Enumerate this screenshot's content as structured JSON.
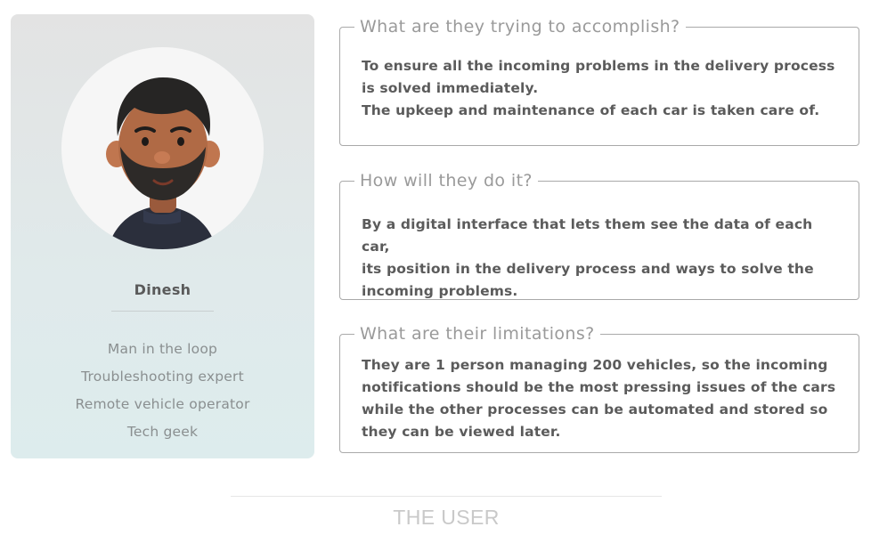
{
  "profile": {
    "name": "Dinesh",
    "avatar_icon": "man-avatar-icon",
    "roles": [
      "Man in the loop",
      "Troubleshooting expert",
      "Remote vehicle operator",
      "Tech geek"
    ]
  },
  "sections": [
    {
      "legend": "What are they trying to accomplish?",
      "lines": [
        "To ensure all the incoming problems in the delivery process",
        "is solved immediately.",
        "The upkeep and maintenance of each car is taken care of."
      ]
    },
    {
      "legend": "How will they do it?",
      "lines": [
        "By a digital interface that lets them see the data of each car,",
        "its position in the delivery process and ways to solve the",
        "incoming problems."
      ]
    },
    {
      "legend": "What are their limitations?",
      "lines": [
        "They are 1 person managing 200 vehicles, so the incoming",
        "notifications should be the most pressing issues of the cars",
        "while the other processes can be automated and stored so",
        "they can be viewed later."
      ]
    }
  ],
  "footer": {
    "title": "THE USER"
  },
  "colors": {
    "card_background": "#e0eaeb",
    "body_text": "#5b5b5b",
    "legend_text": "#9a9a9a",
    "footer_text": "#c9c9c9"
  }
}
